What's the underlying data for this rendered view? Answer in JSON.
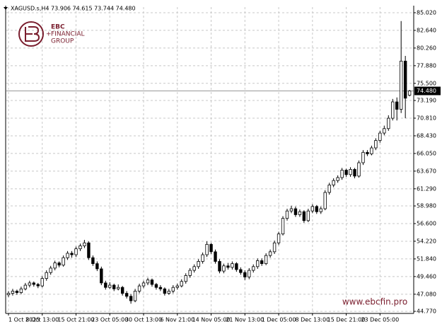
{
  "chart_data": {
    "type": "candlestick",
    "title": "XAGUSD.s,H4  73.906 74.615 73.744 74.480",
    "watermark": "www.ebcfin.pro",
    "logo": [
      "EBC",
      "FINANCIAL",
      "GROUP"
    ],
    "categories": [
      "1 Oct 2025",
      null,
      null,
      null,
      null,
      null,
      null,
      null,
      "8 Oct 13:00",
      null,
      null,
      null,
      null,
      null,
      null,
      null,
      "15 Oct 21:00",
      null,
      null,
      null,
      null,
      null,
      null,
      null,
      "23 Oct 05:00",
      null,
      null,
      null,
      null,
      null,
      null,
      null,
      "30 Oct 13:00",
      null,
      null,
      null,
      null,
      null,
      null,
      null,
      "6 Nov 21:00",
      null,
      null,
      null,
      null,
      null,
      null,
      null,
      "14 Nov 05:00",
      null,
      null,
      null,
      null,
      null,
      null,
      null,
      "21 Nov 13:00",
      null,
      null,
      null,
      null,
      null,
      null,
      null,
      "1 Dec 05:00",
      null,
      null,
      null,
      null,
      null,
      null,
      null,
      "8 Dec 13:00",
      null,
      null,
      null,
      null,
      null,
      null,
      null,
      "15 Dec 21:00",
      null,
      null,
      null,
      null,
      null,
      null,
      null,
      "23 Dec 05:00",
      null,
      null,
      null,
      null,
      null,
      null,
      null
    ],
    "candles": [
      [
        47.0,
        47.5,
        46.7,
        47.2
      ],
      [
        47.2,
        47.8,
        46.9,
        47.5
      ],
      [
        47.5,
        47.7,
        47.0,
        47.3
      ],
      [
        47.3,
        48.1,
        47.1,
        47.8
      ],
      [
        47.8,
        48.6,
        47.6,
        48.3
      ],
      [
        48.3,
        48.9,
        48.0,
        48.6
      ],
      [
        48.6,
        48.8,
        48.1,
        48.4
      ],
      [
        48.4,
        48.6,
        47.9,
        48.2
      ],
      [
        48.2,
        49.5,
        48.0,
        49.2
      ],
      [
        49.2,
        50.3,
        48.9,
        50.0
      ],
      [
        50.0,
        50.9,
        49.7,
        50.6
      ],
      [
        50.6,
        51.6,
        50.3,
        51.3
      ],
      [
        51.3,
        51.5,
        50.7,
        51.0
      ],
      [
        51.0,
        52.3,
        50.8,
        52.0
      ],
      [
        52.0,
        52.9,
        51.7,
        52.6
      ],
      [
        52.6,
        52.9,
        52.0,
        52.4
      ],
      [
        52.4,
        53.5,
        52.1,
        53.2
      ],
      [
        53.2,
        53.9,
        52.9,
        53.6
      ],
      [
        53.6,
        54.4,
        53.3,
        54.0
      ],
      [
        54.0,
        54.2,
        51.7,
        52.0
      ],
      [
        52.0,
        52.3,
        50.9,
        51.2
      ],
      [
        51.2,
        51.5,
        50.2,
        50.5
      ],
      [
        50.5,
        50.8,
        48.3,
        48.6
      ],
      [
        48.6,
        48.9,
        47.7,
        48.0
      ],
      [
        48.0,
        48.7,
        47.8,
        48.3
      ],
      [
        48.3,
        48.5,
        47.5,
        47.8
      ],
      [
        47.8,
        48.4,
        47.6,
        48.0
      ],
      [
        48.0,
        48.2,
        46.9,
        47.2
      ],
      [
        47.2,
        47.5,
        46.5,
        46.8
      ],
      [
        46.8,
        47.1,
        45.8,
        46.2
      ],
      [
        46.2,
        47.8,
        46.0,
        47.5
      ],
      [
        47.5,
        48.5,
        47.2,
        48.2
      ],
      [
        48.2,
        48.9,
        47.9,
        48.6
      ],
      [
        48.6,
        49.3,
        48.3,
        49.0
      ],
      [
        49.0,
        49.2,
        48.1,
        48.4
      ],
      [
        48.4,
        48.6,
        47.7,
        48.0
      ],
      [
        48.0,
        48.3,
        47.5,
        47.8
      ],
      [
        47.8,
        48.0,
        46.9,
        47.2
      ],
      [
        47.2,
        47.8,
        47.0,
        47.5
      ],
      [
        47.5,
        48.3,
        47.2,
        48.0
      ],
      [
        48.0,
        48.5,
        47.7,
        48.2
      ],
      [
        48.2,
        49.1,
        48.0,
        48.8
      ],
      [
        48.8,
        49.9,
        48.5,
        49.6
      ],
      [
        49.6,
        50.6,
        49.3,
        50.3
      ],
      [
        50.3,
        51.1,
        50.0,
        50.8
      ],
      [
        50.8,
        51.8,
        50.5,
        51.5
      ],
      [
        51.5,
        52.7,
        51.2,
        52.4
      ],
      [
        52.4,
        54.2,
        52.1,
        53.8
      ],
      [
        53.8,
        54.0,
        52.5,
        52.8
      ],
      [
        52.8,
        53.1,
        51.2,
        51.5
      ],
      [
        51.5,
        51.8,
        49.9,
        50.2
      ],
      [
        50.2,
        51.2,
        49.9,
        50.9
      ],
      [
        50.9,
        51.3,
        50.4,
        50.7
      ],
      [
        50.7,
        51.5,
        50.4,
        51.2
      ],
      [
        51.2,
        51.4,
        50.1,
        50.4
      ],
      [
        50.4,
        50.7,
        49.7,
        50.0
      ],
      [
        50.0,
        50.3,
        49.0,
        49.4
      ],
      [
        49.4,
        50.6,
        49.1,
        50.3
      ],
      [
        50.3,
        51.1,
        50.0,
        50.8
      ],
      [
        50.8,
        51.9,
        50.5,
        51.6
      ],
      [
        51.6,
        51.9,
        50.9,
        51.2
      ],
      [
        51.2,
        52.6,
        51.0,
        52.3
      ],
      [
        52.3,
        53.1,
        52.0,
        52.8
      ],
      [
        52.8,
        54.3,
        52.5,
        54.0
      ],
      [
        54.0,
        55.5,
        53.7,
        55.2
      ],
      [
        55.2,
        57.6,
        55.0,
        57.3
      ],
      [
        57.3,
        58.6,
        57.0,
        58.3
      ],
      [
        58.3,
        59.0,
        58.0,
        58.6
      ],
      [
        58.6,
        58.9,
        57.5,
        57.8
      ],
      [
        57.8,
        58.5,
        57.5,
        58.2
      ],
      [
        58.2,
        58.4,
        56.7,
        57.0
      ],
      [
        57.0,
        58.6,
        56.8,
        58.3
      ],
      [
        58.3,
        59.2,
        58.0,
        58.9
      ],
      [
        58.9,
        59.1,
        57.9,
        58.2
      ],
      [
        58.2,
        58.9,
        57.9,
        58.6
      ],
      [
        58.6,
        61.1,
        58.4,
        60.8
      ],
      [
        60.8,
        62.1,
        60.5,
        61.8
      ],
      [
        61.8,
        62.7,
        61.5,
        62.4
      ],
      [
        62.4,
        63.1,
        62.1,
        62.8
      ],
      [
        62.8,
        64.1,
        62.5,
        63.8
      ],
      [
        63.8,
        64.0,
        62.9,
        63.2
      ],
      [
        63.2,
        64.2,
        62.9,
        63.9
      ],
      [
        63.9,
        64.1,
        62.7,
        63.0
      ],
      [
        63.0,
        65.1,
        62.8,
        64.8
      ],
      [
        64.8,
        66.5,
        64.5,
        66.2
      ],
      [
        66.2,
        66.5,
        65.7,
        66.0
      ],
      [
        66.0,
        67.1,
        65.8,
        66.8
      ],
      [
        66.8,
        68.1,
        66.5,
        67.8
      ],
      [
        67.8,
        69.1,
        67.5,
        68.8
      ],
      [
        68.8,
        69.8,
        68.5,
        69.4
      ],
      [
        69.4,
        71.2,
        69.1,
        70.8
      ],
      [
        70.8,
        73.4,
        70.5,
        73.0
      ],
      [
        73.0,
        73.6,
        70.5,
        72.0
      ],
      [
        72.0,
        83.9,
        71.5,
        78.5
      ],
      [
        78.5,
        79.2,
        70.8,
        73.5
      ],
      [
        73.906,
        74.615,
        73.744,
        74.48
      ]
    ],
    "color": "#000000",
    "ylim": [
      44.49,
      85.78
    ],
    "yticks": [
      {
        "value": 85.02,
        "label": "85.020"
      },
      {
        "value": 82.64,
        "label": "82.640"
      },
      {
        "value": 80.26,
        "label": "80.260"
      },
      {
        "value": 77.88,
        "label": "77.880"
      },
      {
        "value": 75.5,
        "label": "75.500"
      },
      {
        "value": 73.19,
        "label": "73.190"
      },
      {
        "value": 70.81,
        "label": "70.810"
      },
      {
        "value": 68.43,
        "label": "68.430"
      },
      {
        "value": 66.05,
        "label": "66.050"
      },
      {
        "value": 63.67,
        "label": "63.670"
      },
      {
        "value": 61.29,
        "label": "61.290"
      },
      {
        "value": 58.98,
        "label": "58.980"
      },
      {
        "value": 56.6,
        "label": "56.600"
      },
      {
        "value": 54.22,
        "label": "54.220"
      },
      {
        "value": 51.84,
        "label": "51.840"
      },
      {
        "value": 49.46,
        "label": "49.460"
      },
      {
        "value": 47.08,
        "label": "47.080"
      },
      {
        "value": 44.77,
        "label": "44.770"
      }
    ],
    "last_price": {
      "value": 74.48,
      "label": "74.480"
    },
    "grid": true
  }
}
